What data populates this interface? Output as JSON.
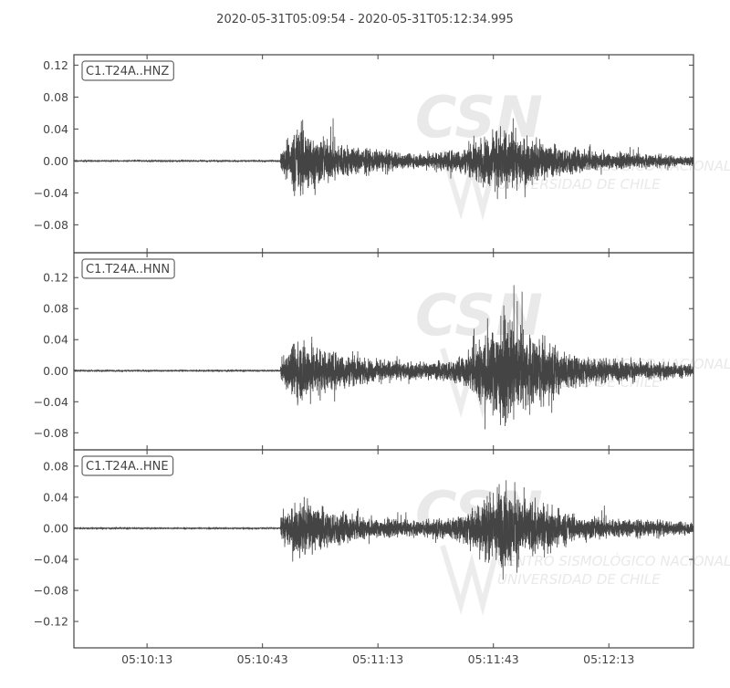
{
  "chart_data": {
    "type": "line",
    "title": "2020-05-31T05:09:54  -  2020-05-31T05:12:34.995",
    "start": "05:09:54",
    "end": "05:12:34.995",
    "xticks": [
      "05:10:13",
      "05:10:43",
      "05:11:13",
      "05:11:43",
      "05:12:13"
    ],
    "colors": {
      "trace": "#444444",
      "axes": "#444444",
      "watermark": "#e8e8e8"
    },
    "watermark": {
      "logo": "CSN",
      "line1": "CENTRO SISMOLÓGICO NACIONAL",
      "line2": "UNIVERSIDAD DE CHILE"
    },
    "grid": false,
    "series": [
      {
        "name": "C1.T24A..HNZ",
        "ylim": [
          -0.115,
          0.133
        ],
        "yticks": [
          0.12,
          0.08,
          0.04,
          0.0,
          -0.04,
          -0.08
        ],
        "ytick_labels": [
          "0.12",
          "0.08",
          "0.04",
          "0.00",
          "−0.04",
          "−0.08"
        ],
        "envelope": [
          [
            "05:09:54",
            0.0008
          ],
          [
            "05:10:47.6",
            0.0008
          ],
          [
            "05:10:48",
            0.018
          ],
          [
            "05:10:53",
            0.05
          ],
          [
            "05:10:58",
            0.03
          ],
          [
            "05:11:08",
            0.018
          ],
          [
            "05:11:22",
            0.009
          ],
          [
            "05:11:35",
            0.016
          ],
          [
            "05:11:45",
            0.042
          ],
          [
            "05:11:55",
            0.024
          ],
          [
            "05:12:10",
            0.012
          ],
          [
            "05:12:35",
            0.006
          ]
        ]
      },
      {
        "name": "C1.T24A..HNN",
        "ylim": [
          -0.102,
          0.152
        ],
        "yticks": [
          0.12,
          0.08,
          0.04,
          0.0,
          -0.04,
          -0.08
        ],
        "ytick_labels": [
          "0.12",
          "0.08",
          "0.04",
          "0.00",
          "−0.04",
          "−0.08"
        ],
        "envelope": [
          [
            "05:09:54",
            0.0008
          ],
          [
            "05:10:47.6",
            0.0008
          ],
          [
            "05:10:48",
            0.02
          ],
          [
            "05:10:53",
            0.045
          ],
          [
            "05:11:00",
            0.028
          ],
          [
            "05:11:10",
            0.016
          ],
          [
            "05:11:25",
            0.01
          ],
          [
            "05:11:35",
            0.018
          ],
          [
            "05:11:45",
            0.075
          ],
          [
            "05:11:52",
            0.05
          ],
          [
            "05:12:05",
            0.02
          ],
          [
            "05:12:35",
            0.008
          ]
        ]
      },
      {
        "name": "C1.T24A..HNE",
        "ylim": [
          -0.154,
          0.101
        ],
        "yticks": [
          0.08,
          0.04,
          0.0,
          -0.04,
          -0.08,
          -0.12
        ],
        "ytick_labels": [
          "0.08",
          "0.04",
          "0.00",
          "−0.04",
          "−0.08",
          "−0.12"
        ],
        "envelope": [
          [
            "05:09:54",
            0.0008
          ],
          [
            "05:10:47.6",
            0.0008
          ],
          [
            "05:10:48",
            0.02
          ],
          [
            "05:10:53",
            0.036
          ],
          [
            "05:11:00",
            0.026
          ],
          [
            "05:11:10",
            0.014
          ],
          [
            "05:11:25",
            0.01
          ],
          [
            "05:11:35",
            0.018
          ],
          [
            "05:11:45",
            0.06
          ],
          [
            "05:11:52",
            0.04
          ],
          [
            "05:12:05",
            0.016
          ],
          [
            "05:12:35",
            0.008
          ]
        ]
      }
    ]
  }
}
